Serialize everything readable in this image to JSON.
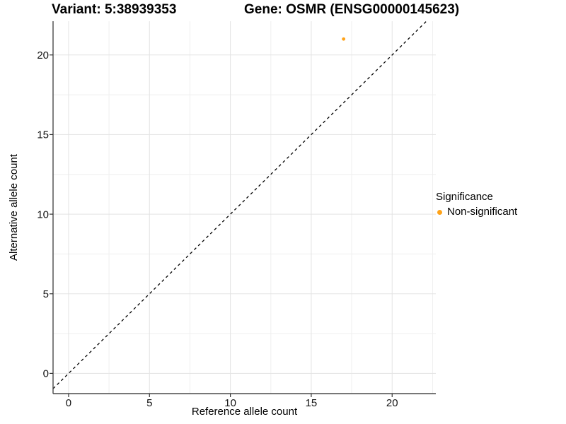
{
  "titles": {
    "variant": "Variant: 5:38939353",
    "gene": "Gene: OSMR (ENSG00000145623)"
  },
  "legend": {
    "title": "Significance",
    "items": [
      {
        "label": "Non-significant",
        "color": "#FFA319"
      }
    ]
  },
  "chart_data": {
    "type": "scatter",
    "title": "Variant: 5:38939353   Gene: OSMR (ENSG00000145623)",
    "xlabel": "Reference allele count",
    "ylabel": "Alternative allele count",
    "xlim": [
      -0.96,
      22.7
    ],
    "ylim": [
      -1.27,
      22.12
    ],
    "xticks": [
      0,
      5,
      10,
      15,
      20
    ],
    "yticks": [
      0,
      5,
      10,
      15,
      20
    ],
    "minor_grid_interval": 2.5,
    "grid": "major+minor",
    "legend_position": "right",
    "series": [
      {
        "name": "Non-significant",
        "color": "#FFA319",
        "points": [
          {
            "x": 17,
            "y": 21
          }
        ]
      }
    ],
    "reference_line": {
      "type": "abline",
      "slope": 1,
      "intercept": 0,
      "style": "dashed",
      "color": "#000000"
    },
    "colors": {
      "background": "#FFFFFF",
      "grid_major": "#E3E3E3",
      "grid_minor": "#EFEFEF",
      "axis_line": "#4A4A4A",
      "tick": "#333333",
      "text": "#000000",
      "point": "#FFA319"
    }
  }
}
